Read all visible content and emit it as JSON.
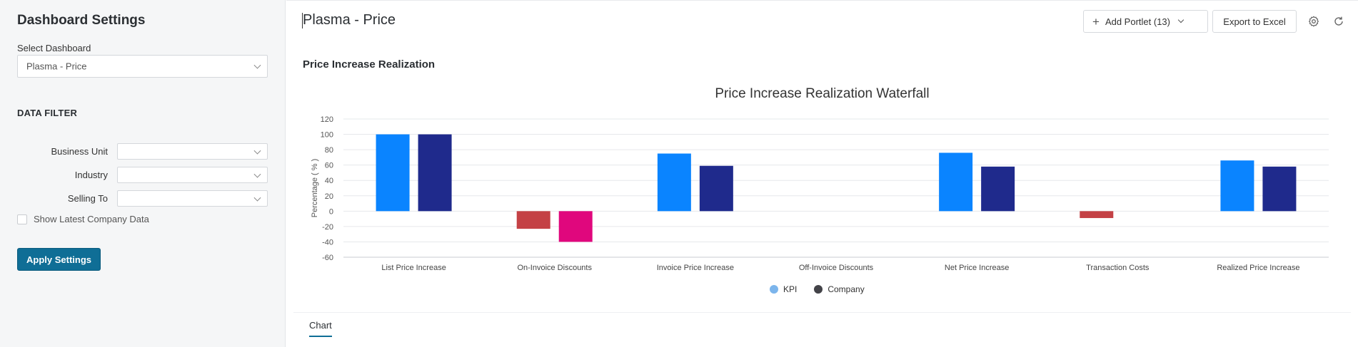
{
  "sidebar": {
    "title": "Dashboard Settings",
    "select_dashboard_label": "Select Dashboard",
    "selected_dashboard": "Plasma - Price",
    "data_filter_heading": "DATA FILTER",
    "filters": [
      {
        "label": "Business Unit",
        "value": ""
      },
      {
        "label": "Industry",
        "value": ""
      },
      {
        "label": "Selling To",
        "value": ""
      }
    ],
    "show_latest_label": "Show Latest Company Data",
    "apply_label": "Apply Settings"
  },
  "header": {
    "title": "Plasma - Price",
    "add_portlet_label": "Add Portlet (13)",
    "export_label": "Export to Excel"
  },
  "portlet": {
    "title": "Price Increase Realization",
    "tab_label": "Chart"
  },
  "colors": {
    "kpi": "#0a84ff",
    "company": "#1f2a8c",
    "kpi_negative": "#c44145",
    "company_negative": "#e0077d",
    "accent": "#0f6e96",
    "legend_kpi": "#7cb5ec",
    "legend_company": "#434348"
  },
  "chart_data": {
    "type": "bar",
    "title": "Price Increase Realization Waterfall",
    "ylabel": "Percentage ( % )",
    "xlabel": "",
    "ylim": [
      -60,
      120
    ],
    "yticks": [
      120,
      100,
      80,
      60,
      40,
      20,
      0,
      -20,
      -40,
      -60
    ],
    "categories": [
      "List Price Increase",
      "On-Invoice Discounts",
      "Invoice Price Increase",
      "Off-Invoice Discounts",
      "Net Price Increase",
      "Transaction Costs",
      "Realized Price Increase"
    ],
    "series": [
      {
        "name": "KPI",
        "values": [
          100,
          -23,
          75,
          0,
          76,
          -9,
          66
        ]
      },
      {
        "name": "Company",
        "values": [
          100,
          -40,
          59,
          0,
          58,
          0,
          58
        ]
      }
    ],
    "legend": "bottom-center",
    "grid": true
  }
}
